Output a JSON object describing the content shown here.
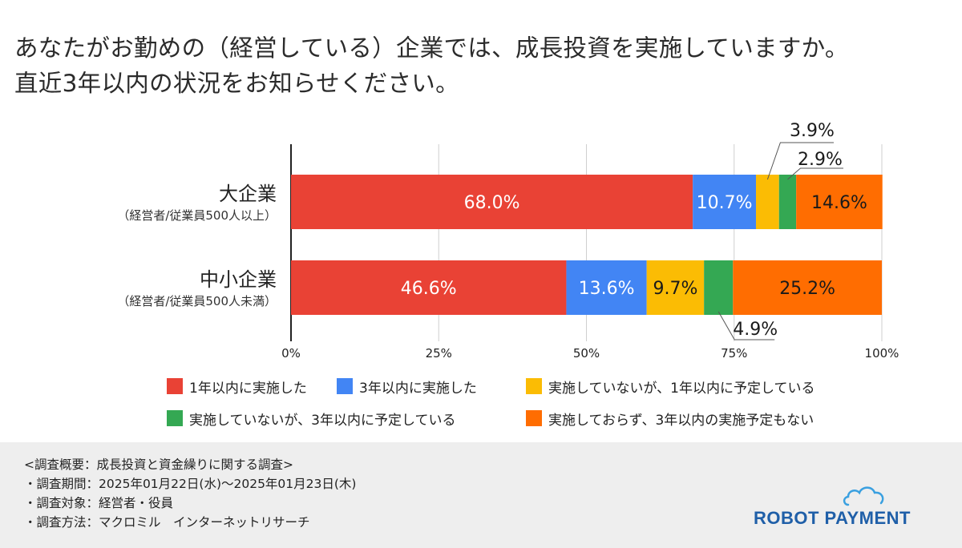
{
  "title": "あなたがお勤めの（経営している）企業では、成長投資を実施していますか。\n直近3年以内の状況をお知らせください。",
  "chart_data": {
    "type": "bar",
    "orientation": "horizontal",
    "stacked": true,
    "categories": [
      {
        "name": "大企業",
        "sub": "（経営者/従業員500人以上）"
      },
      {
        "name": "中小企業",
        "sub": "（経営者/従業員500人未満）"
      }
    ],
    "series": [
      {
        "name": "1年以内に実施した",
        "color": "#E94235",
        "values": [
          68.0,
          46.6
        ],
        "labels": [
          "68.0%",
          "46.6%"
        ]
      },
      {
        "name": "3年以内に実施した",
        "color": "#4285F4",
        "values": [
          10.7,
          13.6
        ],
        "labels": [
          "10.7%",
          "13.6%"
        ]
      },
      {
        "name": "実施していないが、1年以内に予定している",
        "color": "#FBBC04",
        "values": [
          3.9,
          9.7
        ],
        "labels": [
          "3.9%",
          "9.7%"
        ]
      },
      {
        "name": "実施していないが、3年以内に予定している",
        "color": "#34A853",
        "values": [
          2.9,
          4.9
        ],
        "labels": [
          "2.9%",
          "4.9%"
        ]
      },
      {
        "name": "実施しておらず、3年以内の実施予定もない",
        "color": "#FF6D01",
        "values": [
          14.6,
          25.2
        ],
        "labels": [
          "14.6%",
          "25.2%"
        ]
      }
    ],
    "xlim": [
      0,
      100
    ],
    "xticks": [
      "0%",
      "25%",
      "50%",
      "75%",
      "100%"
    ],
    "grid": true,
    "legend_position": "bottom"
  },
  "survey": {
    "heading": "<調査概要：成長投資と資金繰りに関する調査>",
    "period": "・調査期間：2025年01月22日(水)〜2025年01月23日(木)",
    "target": "・調査対象：経営者・役員",
    "method": "・調査方法：マクロミル　インターネットリサーチ"
  },
  "logo": {
    "text": "ROBOT PAYMENT",
    "color": "#1f5fa8"
  }
}
